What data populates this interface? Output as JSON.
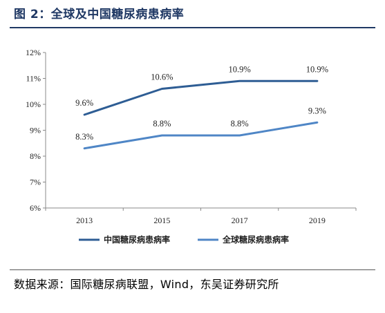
{
  "figure": {
    "title": "图 2：全球及中国糖尿病患病率",
    "source": "数据来源：国际糖尿病联盟，Wind，东吴证券研究所"
  },
  "colors": {
    "accent": "#1f3864",
    "series_china": "#2e5d94",
    "series_global": "#4f86c6"
  },
  "chart_data": {
    "type": "line",
    "title": "",
    "xlabel": "",
    "ylabel": "",
    "x": [
      "2013",
      "2015",
      "2017",
      "2019"
    ],
    "ylim": [
      6,
      12
    ],
    "yticks": [
      "6%",
      "7%",
      "8%",
      "9%",
      "10%",
      "11%",
      "12%"
    ],
    "grid": false,
    "legend_position": "bottom",
    "series": [
      {
        "name": "中国糖尿病患病率",
        "values": [
          9.6,
          10.6,
          10.9,
          10.9
        ],
        "labels": [
          "9.6%",
          "10.6%",
          "10.9%",
          "10.9%"
        ]
      },
      {
        "name": "全球糖尿病患病率",
        "values": [
          8.3,
          8.8,
          8.8,
          9.3
        ],
        "labels": [
          "8.3%",
          "8.8%",
          "8.8%",
          "9.3%"
        ]
      }
    ]
  }
}
